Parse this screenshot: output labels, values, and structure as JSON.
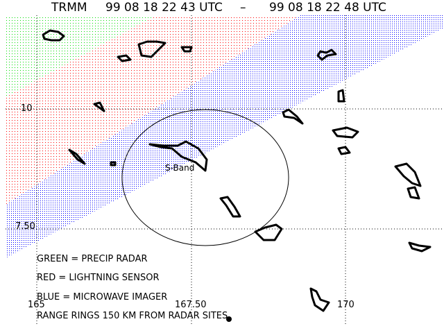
{
  "header": {
    "satellite": "TRMM",
    "start_time": "99 08 18 22 43 UTC",
    "separator": "–",
    "end_time": "99 08 18 22 48 UTC"
  },
  "map": {
    "lat_labels": [
      "10",
      "7.50"
    ],
    "lon_labels": [
      "165",
      "167.50",
      "170"
    ],
    "radar_site_label": "S-Band",
    "swath_colors": {
      "precip_radar": "#00dd00",
      "lightning_sensor": "#ff0000",
      "microwave_imager": "#0000ff"
    }
  },
  "legend": {
    "lines": [
      "GREEN = PRECIP RADAR",
      "RED = LIGHTNING SENSOR",
      "BLUE = MICROWAVE IMAGER",
      "RANGE RINGS 150 KM FROM RADAR SITES"
    ]
  }
}
